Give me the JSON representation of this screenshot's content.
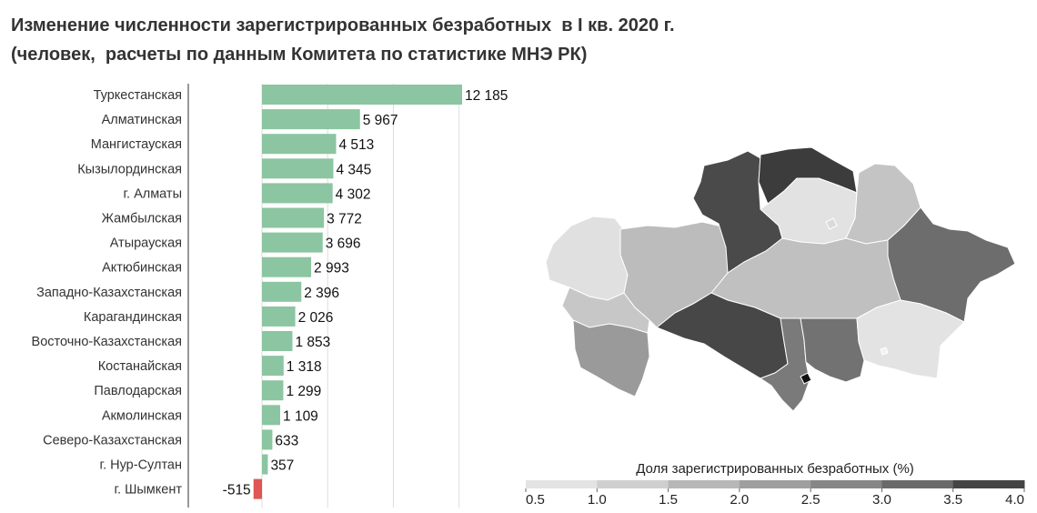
{
  "title": {
    "line1": "Изменение численности зарегистрированных безработных  в I кв. 2020 г.",
    "line2": "(человек,  расчеты по данным Комитета по статистике МНЭ РК)"
  },
  "chart_data": [
    {
      "type": "bar",
      "orientation": "horizontal",
      "categories": [
        "Туркестанская",
        "Алматинская",
        "Мангистауская",
        "Кызылординская",
        "г. Алматы",
        "Жамбылская",
        "Атырауская",
        "Актюбинская",
        "Западно-Казахстанская",
        "Карагандинская",
        "Восточно-Казахстанская",
        "Костанайская",
        "Павлодарская",
        "Акмолинская",
        "Северо-Казахстанская",
        "г. Нур-Султан",
        "г. Шымкент"
      ],
      "values": [
        12185,
        5967,
        4513,
        4345,
        4302,
        3772,
        3696,
        2993,
        2396,
        2026,
        1853,
        1318,
        1299,
        1109,
        633,
        357,
        -515
      ],
      "value_labels": [
        "12 185",
        "5 967",
        "4 513",
        "4 345",
        "4 302",
        "3 772",
        "3 696",
        "2 993",
        "2 396",
        "2 026",
        "1 853",
        "1 318",
        "1 299",
        "1 109",
        "633",
        "357",
        "-515"
      ],
      "xlim": [
        -1000,
        12185
      ],
      "grid": true,
      "colors": {
        "positive": "#8cc5a1",
        "negative": "#e05555"
      }
    },
    {
      "type": "choropleth",
      "legend_title": "Доля зарегистрированных безработных (%)",
      "legend_ticks": [
        "0.5",
        "1.0",
        "1.5",
        "2.0",
        "2.5",
        "3.0",
        "3.5",
        "4.0"
      ],
      "legend_range": [
        0.5,
        4.0
      ],
      "legend_placement": "bottom",
      "legend_colors": [
        "#e3e3e3",
        "#cfcfcf",
        "#b7b7b7",
        "#9f9f9f",
        "#868686",
        "#6a6a6a",
        "#444444"
      ],
      "regions": [
        {
          "id": "west-kazakhstan",
          "fill": "#e0e0e0"
        },
        {
          "id": "atyrau",
          "fill": "#c7c7c7"
        },
        {
          "id": "aktobe",
          "fill": "#bcbcbc"
        },
        {
          "id": "mangystau",
          "fill": "#9a9a9a"
        },
        {
          "id": "kostanay",
          "fill": "#4a4a4a"
        },
        {
          "id": "north-kazakhstan",
          "fill": "#3c3c3c"
        },
        {
          "id": "akmola",
          "fill": "#e2e2e2"
        },
        {
          "id": "pavlodar",
          "fill": "#c4c4c4"
        },
        {
          "id": "east-kazakhstan",
          "fill": "#6d6d6d"
        },
        {
          "id": "karaganda",
          "fill": "#c0c0c0"
        },
        {
          "id": "kyzylorda",
          "fill": "#474747"
        },
        {
          "id": "turkestan",
          "fill": "#7a7a7a"
        },
        {
          "id": "zhambyl",
          "fill": "#727272"
        },
        {
          "id": "almaty",
          "fill": "#e3e3e3"
        },
        {
          "id": "nur-sultan",
          "fill": "#dadada"
        },
        {
          "id": "shymkent",
          "fill": "#111111"
        },
        {
          "id": "almaty-city",
          "fill": "#f2f2f2"
        }
      ]
    }
  ]
}
